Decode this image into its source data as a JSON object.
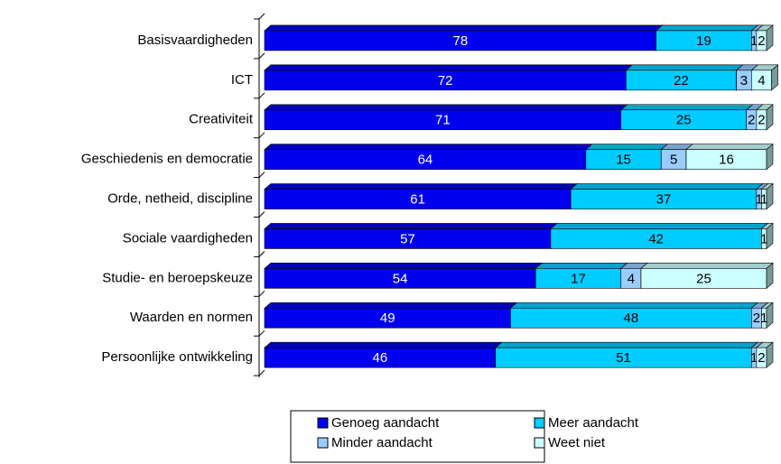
{
  "chart_data": {
    "type": "bar",
    "orientation": "horizontal",
    "stacked": true,
    "categories": [
      "Basisvaardigheden",
      "ICT",
      "Creativiteit",
      "Geschiedenis en democratie",
      "Orde, netheid, discipline",
      "Sociale vaardigheden",
      "Studie- en beroepskeuze",
      "Waarden en normen",
      "Persoonlijke ontwikkeling"
    ],
    "series": [
      {
        "name": "Genoeg aandacht",
        "color": "#0000ee",
        "values": [
          78,
          72,
          71,
          64,
          61,
          57,
          54,
          49,
          46
        ]
      },
      {
        "name": "Meer aandacht",
        "color": "#00ccff",
        "values": [
          19,
          22,
          25,
          15,
          37,
          42,
          17,
          48,
          51
        ]
      },
      {
        "name": "Minder aandacht",
        "color": "#99ccff",
        "values": [
          1,
          3,
          2,
          5,
          1,
          0,
          4,
          2,
          1
        ]
      },
      {
        "name": "Weet niet",
        "color": "#ccffff",
        "values": [
          2,
          4,
          2,
          16,
          1,
          1,
          25,
          1,
          2
        ]
      }
    ],
    "xlim": [
      0,
      100
    ],
    "legend": "bottom"
  }
}
